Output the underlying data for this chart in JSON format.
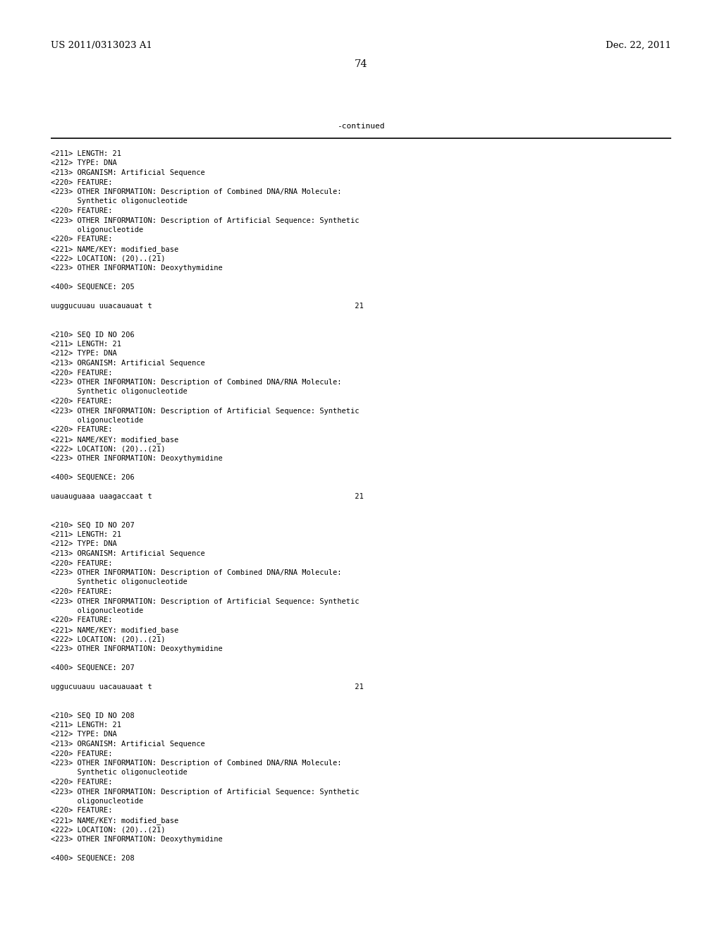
{
  "header_left": "US 2011/0313023 A1",
  "header_right": "Dec. 22, 2011",
  "page_number": "74",
  "continued_label": "-continued",
  "background_color": "#ffffff",
  "text_color": "#000000",
  "font_size_header": 9.5,
  "font_size_body": 7.5,
  "font_size_page": 10.5,
  "font_size_continued": 8.0,
  "lines": [
    "<211> LENGTH: 21",
    "<212> TYPE: DNA",
    "<213> ORGANISM: Artificial Sequence",
    "<220> FEATURE:",
    "<223> OTHER INFORMATION: Description of Combined DNA/RNA Molecule:",
    "      Synthetic oligonucleotide",
    "<220> FEATURE:",
    "<223> OTHER INFORMATION: Description of Artificial Sequence: Synthetic",
    "      oligonucleotide",
    "<220> FEATURE:",
    "<221> NAME/KEY: modified_base",
    "<222> LOCATION: (20)..(21)",
    "<223> OTHER INFORMATION: Deoxythymidine",
    "",
    "<400> SEQUENCE: 205",
    "",
    "uuggucuuau uuacauauat t                                              21",
    "",
    "",
    "<210> SEQ ID NO 206",
    "<211> LENGTH: 21",
    "<212> TYPE: DNA",
    "<213> ORGANISM: Artificial Sequence",
    "<220> FEATURE:",
    "<223> OTHER INFORMATION: Description of Combined DNA/RNA Molecule:",
    "      Synthetic oligonucleotide",
    "<220> FEATURE:",
    "<223> OTHER INFORMATION: Description of Artificial Sequence: Synthetic",
    "      oligonucleotide",
    "<220> FEATURE:",
    "<221> NAME/KEY: modified_base",
    "<222> LOCATION: (20)..(21)",
    "<223> OTHER INFORMATION: Deoxythymidine",
    "",
    "<400> SEQUENCE: 206",
    "",
    "uauauguaaa uaagaccaat t                                              21",
    "",
    "",
    "<210> SEQ ID NO 207",
    "<211> LENGTH: 21",
    "<212> TYPE: DNA",
    "<213> ORGANISM: Artificial Sequence",
    "<220> FEATURE:",
    "<223> OTHER INFORMATION: Description of Combined DNA/RNA Molecule:",
    "      Synthetic oligonucleotide",
    "<220> FEATURE:",
    "<223> OTHER INFORMATION: Description of Artificial Sequence: Synthetic",
    "      oligonucleotide",
    "<220> FEATURE:",
    "<221> NAME/KEY: modified_base",
    "<222> LOCATION: (20)..(21)",
    "<223> OTHER INFORMATION: Deoxythymidine",
    "",
    "<400> SEQUENCE: 207",
    "",
    "uggucuuauu uacauauaat t                                              21",
    "",
    "",
    "<210> SEQ ID NO 208",
    "<211> LENGTH: 21",
    "<212> TYPE: DNA",
    "<213> ORGANISM: Artificial Sequence",
    "<220> FEATURE:",
    "<223> OTHER INFORMATION: Description of Combined DNA/RNA Molecule:",
    "      Synthetic oligonucleotide",
    "<220> FEATURE:",
    "<223> OTHER INFORMATION: Description of Artificial Sequence: Synthetic",
    "      oligonucleotide",
    "<220> FEATURE:",
    "<221> NAME/KEY: modified_base",
    "<222> LOCATION: (20)..(21)",
    "<223> OTHER INFORMATION: Deoxythymidine",
    "",
    "<400> SEQUENCE: 208"
  ]
}
